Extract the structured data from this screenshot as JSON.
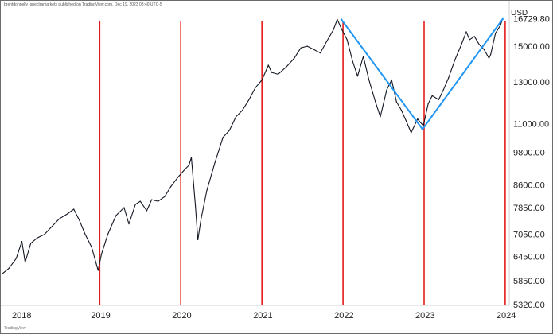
{
  "header": {
    "publisher_text": "brentdonnelly_spectramarkets published on TradingView.com, Dec 19, 2023 08:40 UTC-5",
    "currency": "USD",
    "logo_text": "TradingView"
  },
  "chart_data": {
    "type": "line",
    "title": "",
    "xlabel": "",
    "ylabel": "",
    "y_scale": "log",
    "ylim": [
      5300,
      18000
    ],
    "xlim": [
      2017.78,
      2024.05
    ],
    "x_ticks": [
      "2018",
      "2019",
      "2020",
      "2021",
      "2022",
      "2023",
      "2024"
    ],
    "y_ticks": [
      "5320.00",
      "5850.00",
      "6450.00",
      "7050.00",
      "7850.00",
      "8600.00",
      "9800.00",
      "11000.00",
      "13000.00",
      "15000.00"
    ],
    "last_value_label": "16729.80",
    "grid": false,
    "series": [
      {
        "color": "#131722",
        "x": [
          2017.8,
          2017.88,
          2017.97,
          2018.04,
          2018.08,
          2018.15,
          2018.23,
          2018.32,
          2018.4,
          2018.5,
          2018.6,
          2018.68,
          2018.75,
          2018.82,
          2018.9,
          2018.98,
          2019.02,
          2019.1,
          2019.2,
          2019.3,
          2019.36,
          2019.44,
          2019.5,
          2019.58,
          2019.64,
          2019.72,
          2019.8,
          2019.88,
          2019.96,
          2020.05,
          2020.1,
          2020.13,
          2020.18,
          2020.21,
          2020.25,
          2020.32,
          2020.42,
          2020.52,
          2020.6,
          2020.68,
          2020.76,
          2020.84,
          2020.92,
          2021.0,
          2021.08,
          2021.12,
          2021.2,
          2021.3,
          2021.4,
          2021.48,
          2021.56,
          2021.64,
          2021.72,
          2021.8,
          2021.88,
          2021.93,
          2021.98,
          2022.05,
          2022.12,
          2022.18,
          2022.25,
          2022.32,
          2022.4,
          2022.46,
          2022.54,
          2022.6,
          2022.66,
          2022.72,
          2022.78,
          2022.84,
          2022.92,
          2022.99,
          2023.05,
          2023.1,
          2023.18,
          2023.24,
          2023.3,
          2023.38,
          2023.46,
          2023.52,
          2023.56,
          2023.62,
          2023.68,
          2023.74,
          2023.8,
          2023.82,
          2023.88,
          2023.94,
          2023.97
        ],
        "values": [
          6020,
          6150,
          6400,
          6850,
          6300,
          6800,
          6950,
          7050,
          7250,
          7500,
          7650,
          7800,
          7450,
          7050,
          6700,
          6100,
          6500,
          7050,
          7600,
          7850,
          7350,
          7950,
          8050,
          7750,
          8100,
          8050,
          8200,
          8550,
          8850,
          9150,
          9300,
          9600,
          7900,
          6900,
          7500,
          8400,
          9400,
          10400,
          10700,
          11300,
          11600,
          12100,
          12700,
          13100,
          13900,
          13500,
          13400,
          13800,
          14300,
          14900,
          15000,
          14800,
          14600,
          15300,
          16000,
          16700,
          16100,
          15400,
          14100,
          13300,
          14400,
          13100,
          12000,
          11300,
          12600,
          13100,
          12000,
          11600,
          11100,
          10600,
          11200,
          10900,
          11900,
          12300,
          12100,
          12600,
          13200,
          14200,
          15100,
          15900,
          15400,
          15600,
          15100,
          14800,
          14300,
          14500,
          15800,
          16300,
          16750
        ]
      },
      {
        "color": "#2196f3",
        "x": [
          2021.98,
          2022.98,
          2023.97
        ],
        "values": [
          16700,
          10750,
          16729.8
        ]
      }
    ],
    "vertical_markers": {
      "color": "#e31b1b",
      "x": [
        2019.0,
        2020.0,
        2021.0,
        2022.0,
        2023.0,
        2024.0
      ]
    }
  }
}
